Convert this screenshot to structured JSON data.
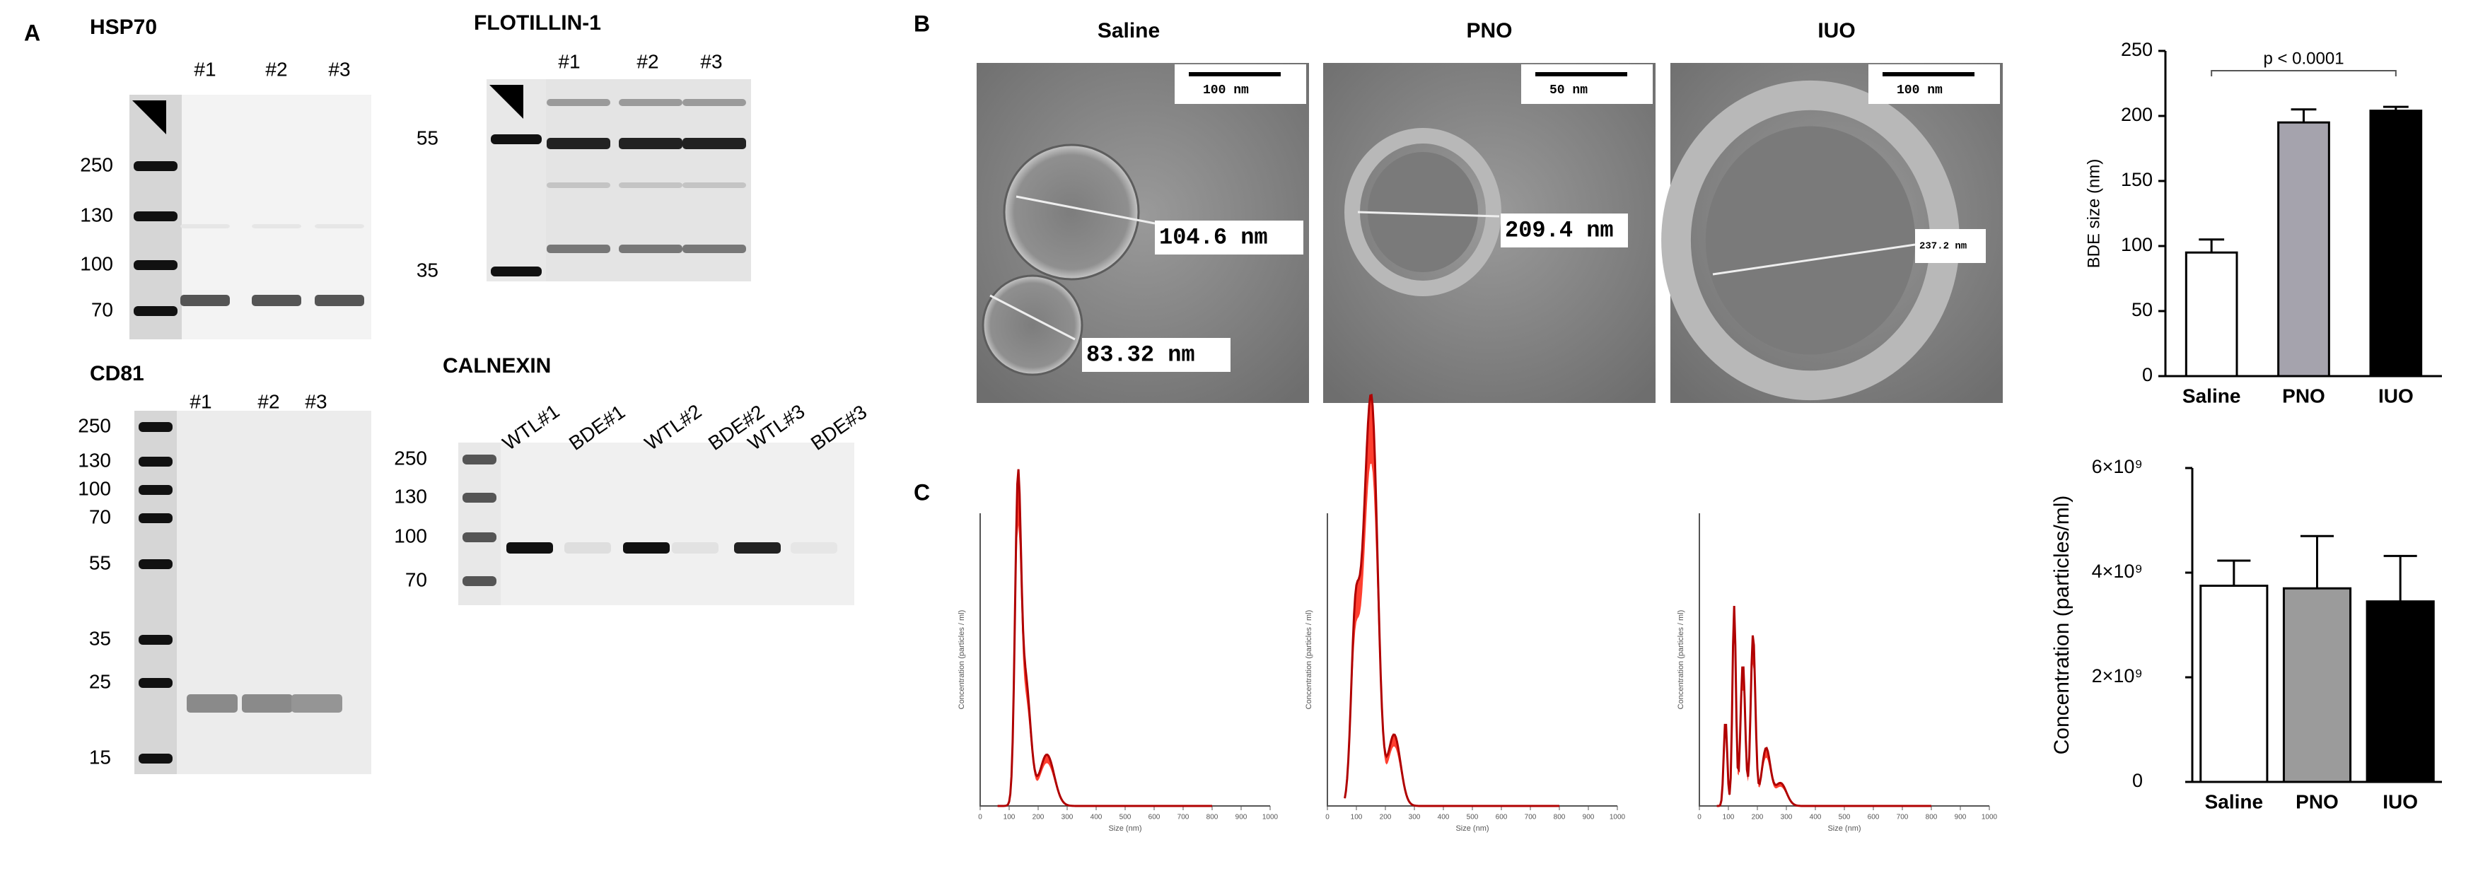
{
  "panel_labels": [
    "A",
    "B",
    "C"
  ],
  "blots": [
    {
      "title": "HSP70",
      "lanes": [
        "#1",
        "#2",
        "#3"
      ],
      "markers": [
        "250",
        "130",
        "100",
        "70"
      ]
    },
    {
      "title": "FLOTILLIN-1",
      "lanes": [
        "#1",
        "#2",
        "#3"
      ],
      "markers": [
        "55",
        "35"
      ]
    },
    {
      "title": "CD81",
      "lanes": [
        "#1",
        "#2",
        "#3"
      ],
      "markers": [
        "250",
        "130",
        "100",
        "70",
        "55",
        "35",
        "25",
        "15"
      ]
    },
    {
      "title": "CALNEXIN",
      "lanes": [
        "WTL#1",
        "BDE#1",
        "WTL#2",
        "BDE#2",
        "WTL#3",
        "BDE#3"
      ],
      "markers": [
        "250",
        "130",
        "100",
        "70"
      ]
    }
  ],
  "tem": [
    {
      "title": "Saline",
      "scale_bar": "100 nm",
      "measurements": [
        "104.6 nm",
        "83.32 nm"
      ]
    },
    {
      "title": "PNO",
      "scale_bar": "50 nm",
      "measurements": [
        "209.4 nm"
      ]
    },
    {
      "title": "IUO",
      "scale_bar": "100 nm",
      "measurements": [
        "237.2 nm"
      ]
    }
  ],
  "nta": {
    "x_label": "Size (nm)",
    "y_label": "Concentration (particles / ml)",
    "x_ticks": [
      "0",
      "100",
      "200",
      "300",
      "400",
      "500",
      "600",
      "700",
      "800",
      "900",
      "1000"
    ]
  },
  "chart_data": [
    {
      "type": "bar",
      "y_label": "BDE size (nm)",
      "categories": [
        "Saline",
        "PNO",
        "IUO"
      ],
      "values": [
        95,
        195,
        204
      ],
      "errors": [
        10,
        10,
        3
      ],
      "colors": [
        "#ffffff",
        "#a5a3ad",
        "#000000"
      ],
      "ylim": [
        0,
        250
      ],
      "yticks": [
        0,
        50,
        100,
        150,
        200,
        250
      ],
      "annotation": "p < 0.0001"
    },
    {
      "type": "bar",
      "y_label": "Concentration (particles/ml)",
      "categories": [
        "Saline",
        "PNO",
        "IUO"
      ],
      "values": [
        3750000000,
        3700000000,
        3450000000
      ],
      "errors": [
        480000000,
        1000000000,
        870000000
      ],
      "colors": [
        "#ffffff",
        "#9b9b9b",
        "#000000"
      ],
      "ylim": [
        0,
        6000000000
      ],
      "yticks": [
        0,
        {
          "value": 2000000000,
          "label": "2×10⁹"
        },
        {
          "value": 4000000000,
          "label": "4×10⁹"
        },
        {
          "value": 6000000000,
          "label": "6×10⁹"
        }
      ]
    }
  ]
}
